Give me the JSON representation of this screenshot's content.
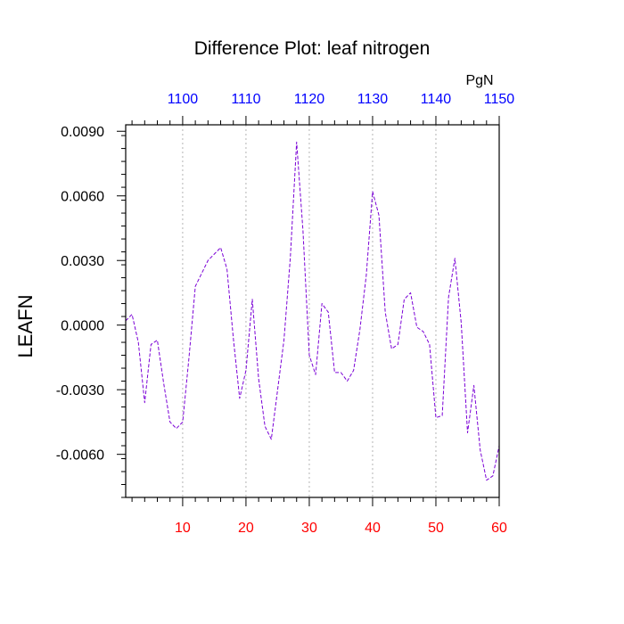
{
  "chart_data": {
    "type": "line",
    "title": "Difference Plot: leaf nitrogen",
    "ylabel": "LEAFN",
    "top_axis_unit": "PgN",
    "xlim": [
      1,
      60
    ],
    "ylim": [
      -0.008,
      0.0093
    ],
    "bottom_ticks": [
      10,
      20,
      30,
      40,
      50,
      60
    ],
    "top_ticks": [
      {
        "x": 10,
        "label": "1100"
      },
      {
        "x": 20,
        "label": "1110"
      },
      {
        "x": 30,
        "label": "1120"
      },
      {
        "x": 40,
        "label": "1130"
      },
      {
        "x": 50,
        "label": "1140"
      },
      {
        "x": 60,
        "label": "1150"
      }
    ],
    "y_ticks": [
      {
        "value": 0.009,
        "label": "0.0090"
      },
      {
        "value": 0.006,
        "label": "0.0060"
      },
      {
        "value": 0.003,
        "label": "0.0030"
      },
      {
        "value": 0.0,
        "label": "0.0000"
      },
      {
        "value": -0.003,
        "label": "-0.0030"
      },
      {
        "value": -0.006,
        "label": "-0.0060"
      }
    ],
    "grid": "vertical dashed at bottom ticks",
    "colors": {
      "bottom_tick_labels": "#ff0000",
      "top_tick_labels": "#0000ff",
      "series_line": "#7a00d6",
      "grid": "#b4b4b4",
      "axis": "#000000"
    },
    "series": [
      {
        "name": "LEAFN difference",
        "x": [
          1,
          2,
          3,
          4,
          5,
          6,
          7,
          8,
          9,
          10,
          11,
          12,
          13,
          14,
          15,
          16,
          17,
          18,
          19,
          20,
          21,
          22,
          23,
          24,
          25,
          26,
          27,
          28,
          29,
          30,
          31,
          32,
          33,
          34,
          35,
          36,
          37,
          38,
          39,
          40,
          41,
          42,
          43,
          44,
          45,
          46,
          47,
          48,
          49,
          50,
          51,
          52,
          53,
          54,
          55,
          56,
          57,
          58,
          59,
          60
        ],
        "values": [
          0.0002,
          0.0005,
          -0.0008,
          -0.0036,
          -0.0009,
          -0.0007,
          -0.0027,
          -0.0045,
          -0.0048,
          -0.0045,
          -0.0015,
          0.0018,
          0.0024,
          0.003,
          0.0033,
          0.0036,
          0.0026,
          -0.0006,
          -0.0034,
          -0.0021,
          0.0012,
          -0.0025,
          -0.0047,
          -0.0053,
          -0.003,
          -0.0007,
          0.0031,
          0.0085,
          0.0044,
          -0.0014,
          -0.0023,
          0.001,
          0.0006,
          -0.0022,
          -0.0022,
          -0.0026,
          -0.0021,
          -0.0002,
          0.0023,
          0.0062,
          0.0051,
          0.0006,
          -0.0011,
          -0.0009,
          0.0012,
          0.0015,
          -0.0001,
          -0.0003,
          -0.0009,
          -0.0043,
          -0.0042,
          0.0013,
          0.0031,
          0.0001,
          -0.005,
          -0.0028,
          -0.0058,
          -0.0072,
          -0.007,
          -0.0056
        ]
      }
    ]
  }
}
